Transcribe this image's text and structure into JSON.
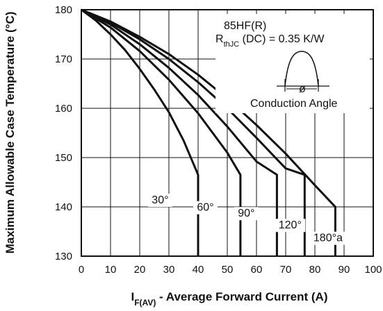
{
  "chart_data": {
    "type": "line",
    "xlabel_main": "I",
    "xlabel_sub": "F(AV)",
    "xlabel_rest": " - Average Forward Current (A)",
    "ylabel": "Maximum Allowable Case Temperature (°C)",
    "xlim": [
      0,
      100
    ],
    "ylim": [
      130,
      180
    ],
    "x_ticks": [
      "0",
      "10",
      "20",
      "30",
      "40",
      "50",
      "60",
      "70",
      "80",
      "90",
      "100"
    ],
    "y_ticks": [
      "130",
      "140",
      "150",
      "160",
      "170",
      "180"
    ],
    "grid": true,
    "annotation": {
      "device": "85HF(R)",
      "rth_main": "R",
      "rth_sub": "thJC",
      "rth_rest": " (DC) = 0.35 K/W",
      "phi": "ø",
      "caption": "Conduction Angle"
    },
    "series": [
      {
        "name": "30°",
        "points": [
          [
            0,
            180
          ],
          [
            5,
            177.8
          ],
          [
            10,
            175
          ],
          [
            15,
            171.8
          ],
          [
            20,
            168
          ],
          [
            25,
            163.8
          ],
          [
            30,
            159.2
          ],
          [
            35,
            153.5
          ],
          [
            40,
            146.5
          ],
          [
            40,
            130
          ]
        ]
      },
      {
        "name": "60°",
        "points": [
          [
            0,
            180
          ],
          [
            10,
            176.4
          ],
          [
            20,
            171.6
          ],
          [
            30,
            165.8
          ],
          [
            40,
            159
          ],
          [
            50,
            151
          ],
          [
            54.5,
            146.5
          ],
          [
            54.5,
            130
          ]
        ]
      },
      {
        "name": "90°",
        "points": [
          [
            0,
            180
          ],
          [
            10,
            177
          ],
          [
            20,
            173
          ],
          [
            30,
            168.2
          ],
          [
            40,
            162.7
          ],
          [
            50,
            156.3
          ],
          [
            60,
            149.2
          ],
          [
            67,
            146.5
          ],
          [
            67,
            130
          ]
        ]
      },
      {
        "name": "120°",
        "points": [
          [
            0,
            180
          ],
          [
            10,
            177.4
          ],
          [
            20,
            174
          ],
          [
            30,
            170
          ],
          [
            40,
            165.3
          ],
          [
            50,
            160
          ],
          [
            60,
            154
          ],
          [
            70,
            147.8
          ],
          [
            76.5,
            146.5
          ],
          [
            76.5,
            130
          ]
        ]
      },
      {
        "name": "180°a",
        "points": [
          [
            0,
            180
          ],
          [
            10,
            177.6
          ],
          [
            20,
            174.5
          ],
          [
            30,
            171
          ],
          [
            40,
            166.8
          ],
          [
            50,
            162
          ],
          [
            60,
            156.6
          ],
          [
            70,
            150.8
          ],
          [
            80,
            144.4
          ],
          [
            87,
            140
          ],
          [
            87,
            130
          ]
        ]
      }
    ]
  }
}
